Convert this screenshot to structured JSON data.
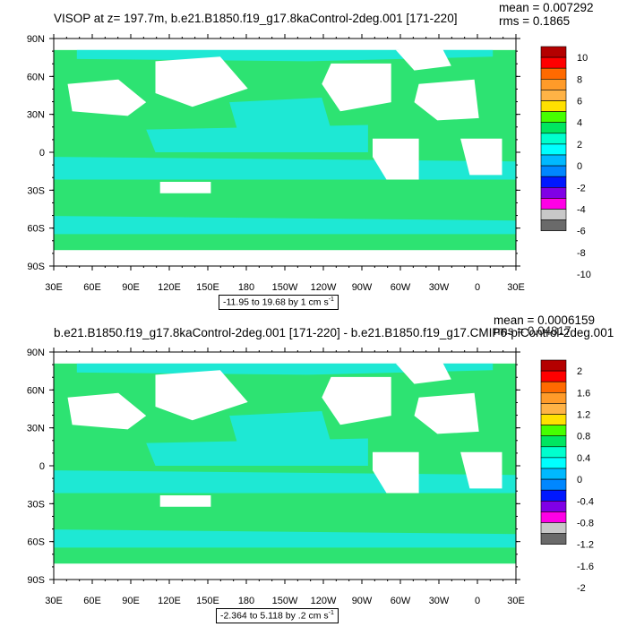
{
  "panels": [
    {
      "title": "VISOP at z= 197.7m, b.e21.B1850.f19_g17.8kaControl-2deg.001 [171-220]",
      "mean": "mean = 0.007292",
      "rms": "rms = 0.1865",
      "range_note": "-11.95 to 19.68 by 1 cm s",
      "range_unit_exp": "-1",
      "colorbar_labels": [
        "10",
        "8",
        "6",
        "4",
        "2",
        "0",
        "-2",
        "-4",
        "-6",
        "-8",
        "-10"
      ],
      "colorbar_colors": [
        "#b40000",
        "#ff0000",
        "#ff6a00",
        "#ff9b29",
        "#ffb346",
        "#ffe000",
        "#46ff00",
        "#00e660",
        "#00ffce",
        "#00ffff",
        "#00b9ff",
        "#0087ff",
        "#0018ff",
        "#8000e6",
        "#ff00e6",
        "#c8c8c8",
        "#6a6a6a"
      ]
    },
    {
      "title": "b.e21.B1850.f19_g17.8kaControl-2deg.001 [171-220] - b.e21.B1850.f19_g17.CMIP6-piControl-2deg.001",
      "mean": "mean = 0.0006159",
      "rms": "rms = 0.04817",
      "range_note": "-2.364 to 5.118 by .2 cm s",
      "range_unit_exp": "-1",
      "colorbar_labels": [
        "2",
        "1.6",
        "1.2",
        "0.8",
        "0.4",
        "0",
        "-0.4",
        "-0.8",
        "-1.2",
        "-1.6",
        "-2"
      ],
      "colorbar_colors": [
        "#b40000",
        "#ff0000",
        "#ff6a00",
        "#ff9b29",
        "#ffb346",
        "#ffe000",
        "#46ff00",
        "#00e660",
        "#00ffce",
        "#00ffff",
        "#00b9ff",
        "#0087ff",
        "#0018ff",
        "#8000e6",
        "#ff00e6",
        "#c8c8c8",
        "#6a6a6a"
      ]
    }
  ],
  "map_axes": {
    "lat_labels": [
      "90N",
      "60N",
      "30N",
      "0",
      "30S",
      "60S",
      "90S"
    ],
    "lon_labels": [
      "30E",
      "60E",
      "90E",
      "120E",
      "150E",
      "180",
      "150W",
      "120W",
      "90W",
      "60W",
      "30W",
      "0",
      "30E"
    ]
  },
  "colors": {
    "ocean_green": "#2de372",
    "ocean_cyan": "#1ee8d4",
    "land": "#ffffff"
  }
}
